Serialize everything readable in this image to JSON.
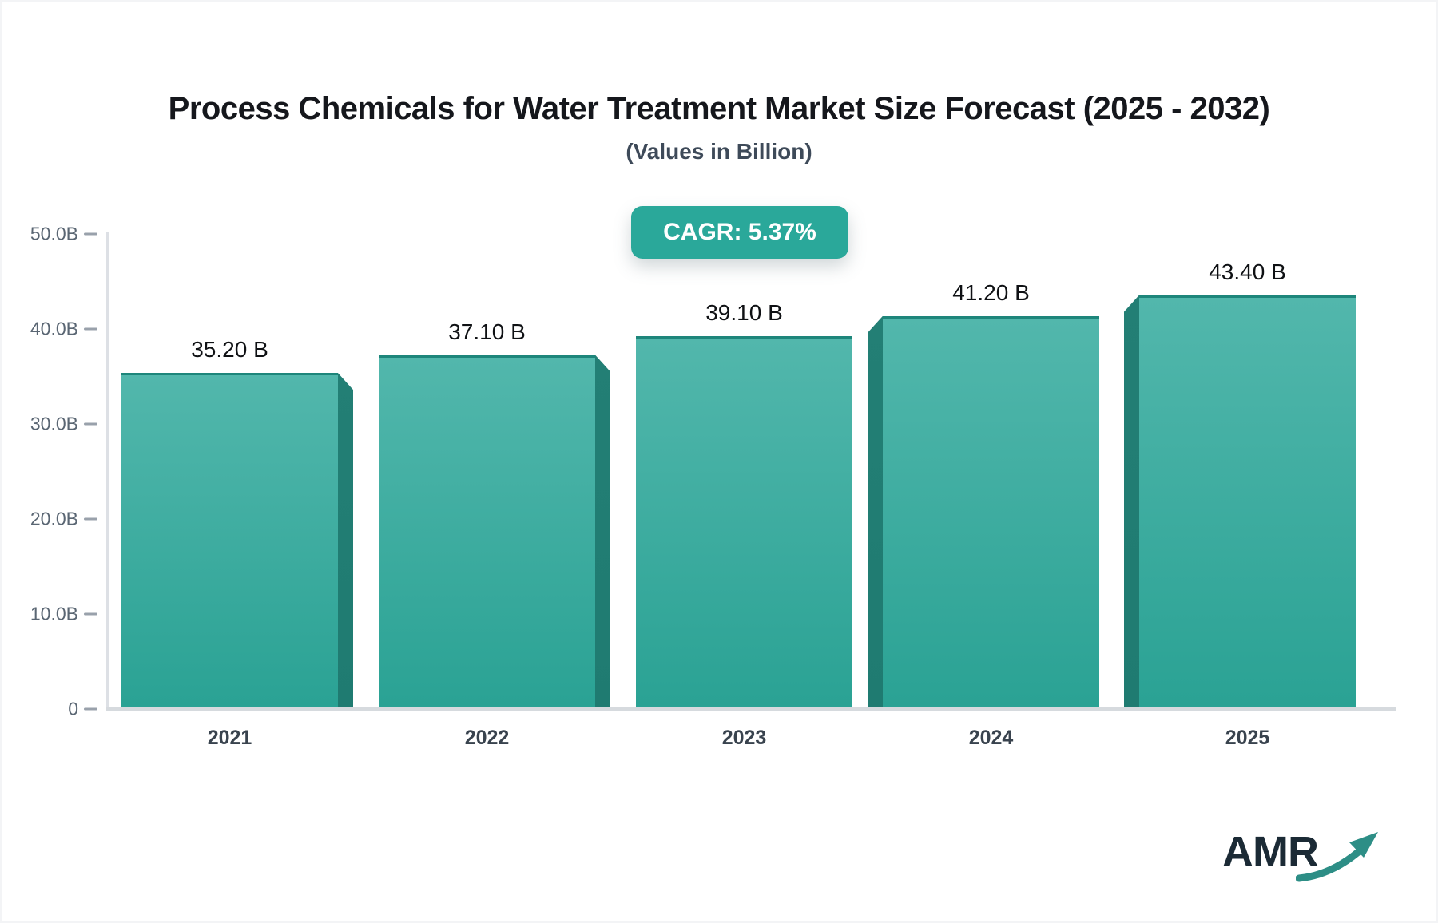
{
  "header": {
    "title": "Process Chemicals for Water Treatment Market Size Forecast (2025 - 2032)",
    "subtitle": "(Values in Billion)"
  },
  "badge": {
    "label": "CAGR: 5.37%",
    "bg": "#2aa89a",
    "text_color": "#ffffff"
  },
  "chart_data": {
    "type": "bar",
    "title": "Process Chemicals for Water Treatment Market Size Forecast (2025 - 2032)",
    "subtitle": "(Values in Billion)",
    "categories": [
      "2021",
      "2022",
      "2023",
      "2024",
      "2025"
    ],
    "values": [
      35.2,
      37.1,
      39.1,
      41.2,
      43.4
    ],
    "value_labels": [
      "35.20 B",
      "37.10 B",
      "39.10 B",
      "41.20 B",
      "43.40 B"
    ],
    "xlabel": "",
    "ylabel": "",
    "ylim": [
      0,
      50
    ],
    "y_ticks": [
      {
        "label": "50.0B",
        "value": 50
      },
      {
        "label": "40.0B",
        "value": 40
      },
      {
        "label": "30.0B",
        "value": 30
      },
      {
        "label": "20.0B",
        "value": 20
      },
      {
        "label": "10.0B",
        "value": 10
      },
      {
        "label": "0",
        "value": 0
      }
    ],
    "grid": false,
    "legend": false,
    "annotation": "CAGR: 5.37%",
    "bar_colors": {
      "top": "#52b7ac",
      "bottom": "#2aa294",
      "side_face": "#1f7b71",
      "top_edge": "#1e867b"
    },
    "style": "3d-bars, side faces angled toward center, vanishing point at middle bar"
  },
  "logo": {
    "text": "AMR",
    "arrow_icon": "trend-up-arrow",
    "text_color": "#1b2a35",
    "arrow_color": "#2d8e86"
  }
}
